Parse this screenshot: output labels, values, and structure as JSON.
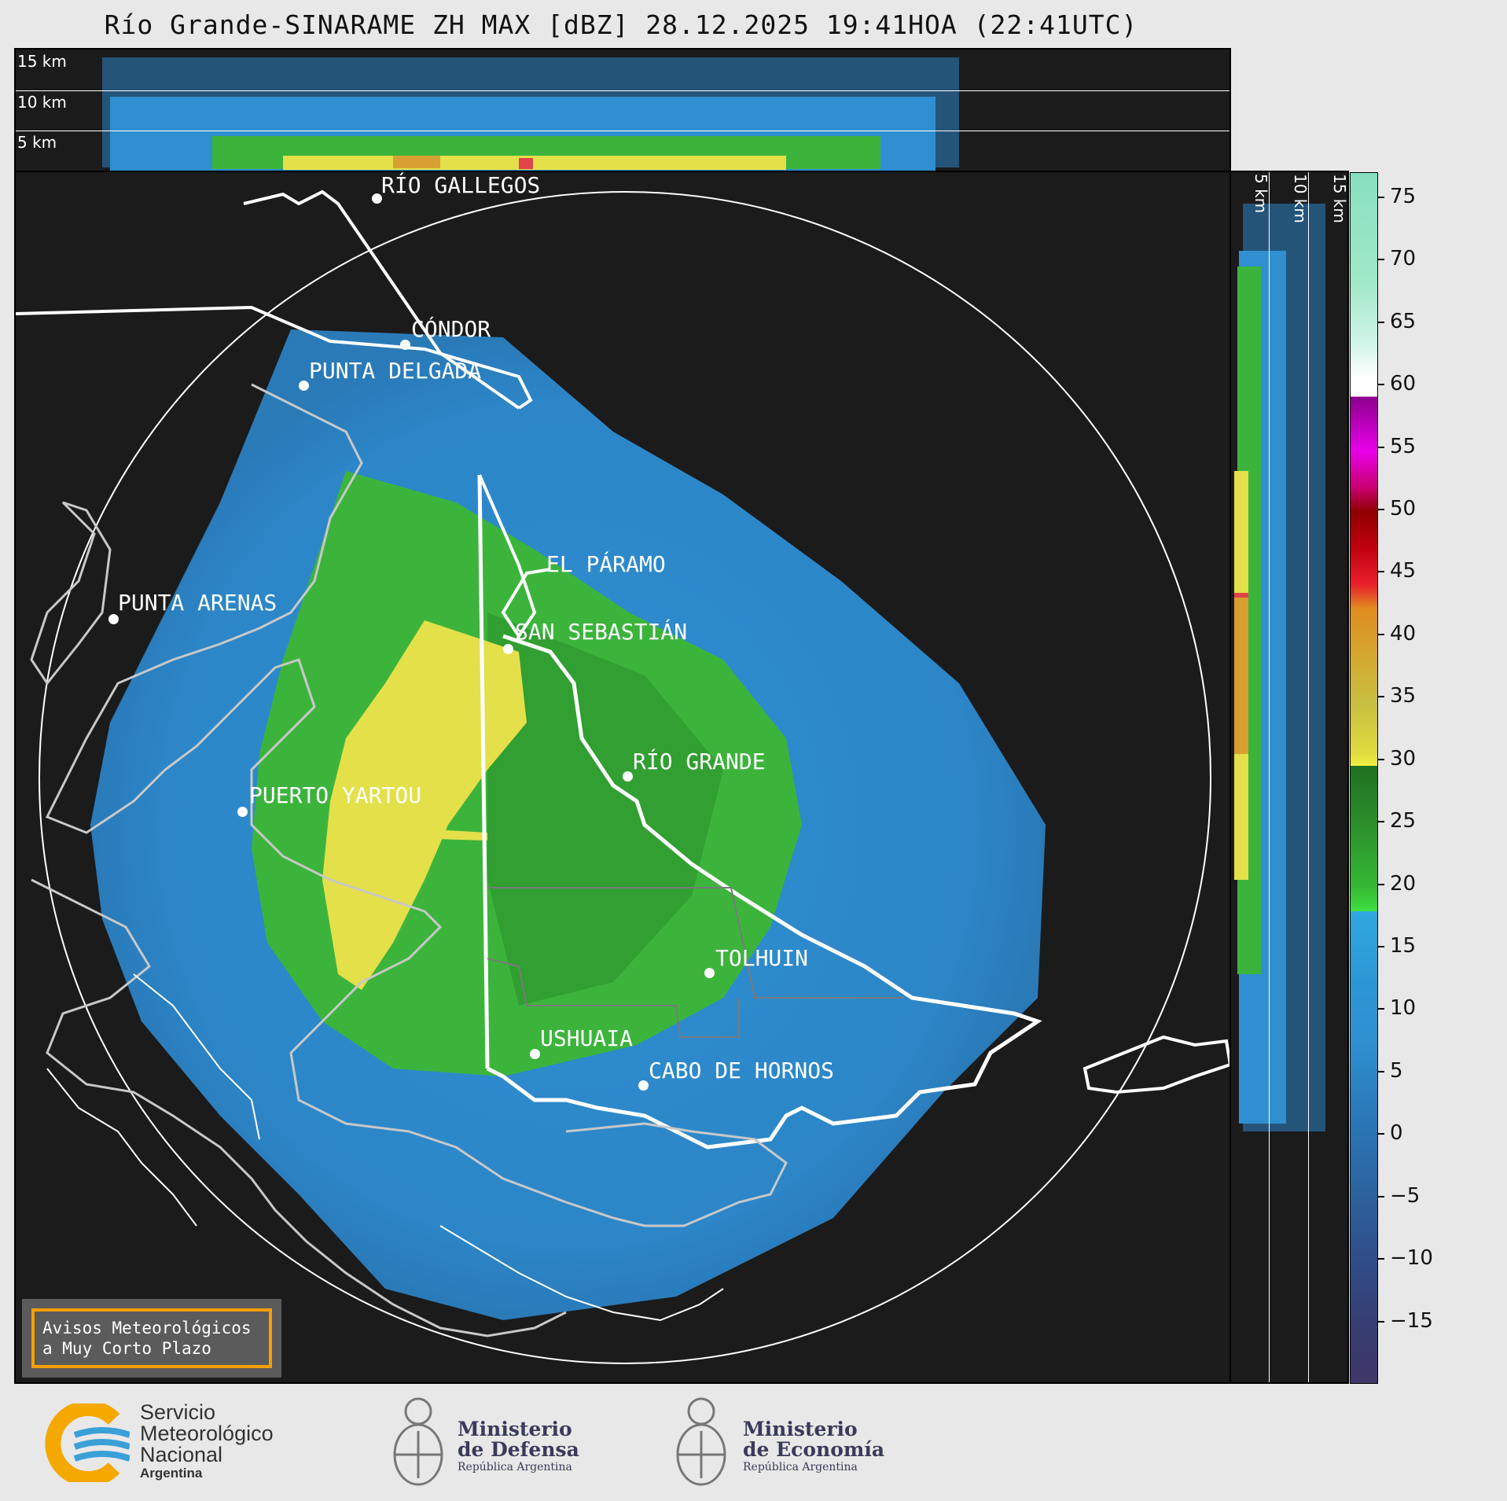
{
  "title": "Río Grande-SINARAME ZH MAX [dBZ] 28.12.2025 19:41HOA (22:41UTC)",
  "top_panel": {
    "levels": [
      "15 km",
      "10 km",
      "5 km"
    ]
  },
  "right_panel": {
    "levels": [
      "5 km",
      "10 km",
      "15 km"
    ]
  },
  "cities": [
    {
      "name": "RÍO GALLEGOS"
    },
    {
      "name": "CÓNDOR"
    },
    {
      "name": "PUNTA DELGADA"
    },
    {
      "name": "PUNTA ARENAS"
    },
    {
      "name": "EL PÁRAMO"
    },
    {
      "name": "SAN SEBASTIÁN"
    },
    {
      "name": "RÍO GRANDE"
    },
    {
      "name": "PUERTO YARTOU"
    },
    {
      "name": "TOLHUIN"
    },
    {
      "name": "USHUAIA"
    },
    {
      "name": "CABO DE HORNOS"
    }
  ],
  "colorbar": {
    "unit": "dBZ",
    "ticks": [
      "75",
      "70",
      "65",
      "60",
      "55",
      "50",
      "45",
      "40",
      "35",
      "30",
      "25",
      "20",
      "15",
      "10",
      "5",
      "0",
      "−5",
      "−10",
      "−15"
    ],
    "range": [
      -20,
      77
    ]
  },
  "warning": {
    "line1": "Avisos Meteorológicos",
    "line2": "a Muy Corto Plazo"
  },
  "logos": {
    "smn": {
      "line1": "Servicio",
      "line2": "Meteorológico",
      "line3": "Nacional",
      "line4": "Argentina",
      "colors": [
        "#f5a800",
        "#3aa0d8"
      ]
    },
    "defensa": {
      "line1": "Ministerio",
      "line2": "de Defensa",
      "line3": "República Argentina"
    },
    "economia": {
      "line1": "Ministerio",
      "line2": "de Economía",
      "line3": "República Argentina"
    }
  },
  "colors": {
    "background": "#1b1b1b",
    "blue_echo": "#2f8fd0",
    "green_echo": "#3cb43c",
    "yellow_echo": "#e4e04a",
    "outline": "#ffffff",
    "coast": "#c8c8c8"
  }
}
